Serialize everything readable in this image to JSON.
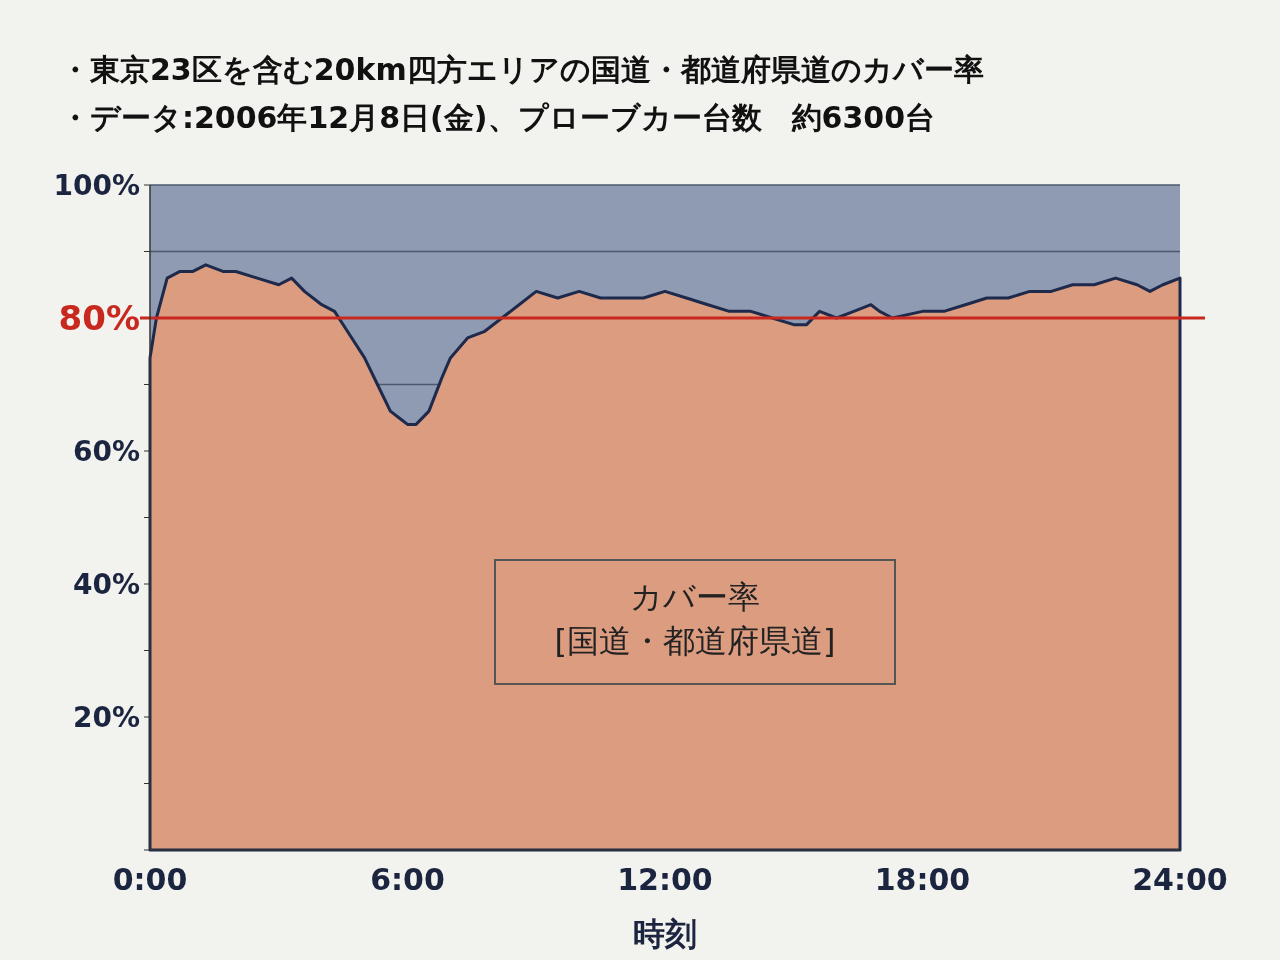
{
  "chart_data": {
    "type": "area",
    "title": "・東京23区を含む20km四方エリアの国道・都道府県道のカバー率",
    "subtitle": "・データ:2006年12月8日(金)、プローブカー台数　約6300台",
    "xlabel": "時刻",
    "x": [
      0,
      0.15,
      0.4,
      0.7,
      1.0,
      1.3,
      1.7,
      2.0,
      2.5,
      3.0,
      3.3,
      3.6,
      4.0,
      4.3,
      4.6,
      5.0,
      5.3,
      5.6,
      5.8,
      6.0,
      6.2,
      6.5,
      6.8,
      7.0,
      7.4,
      7.8,
      8.2,
      8.6,
      9.0,
      9.5,
      10,
      10.5,
      11,
      11.5,
      12,
      12.5,
      13,
      13.5,
      14,
      14.5,
      15,
      15.3,
      15.6,
      16,
      16.4,
      16.8,
      17,
      17.3,
      18,
      18.5,
      19,
      19.5,
      20,
      20.5,
      21,
      21.5,
      22,
      22.5,
      23,
      23.3,
      23.6,
      24
    ],
    "series": [
      {
        "name": "カバー率\n[国道・都道府県道]",
        "color": "#dc9c80",
        "values": [
          74,
          80,
          86,
          87,
          87,
          88,
          87,
          87,
          86,
          85,
          86,
          84,
          82,
          81,
          78,
          74,
          70,
          66,
          65,
          64,
          64,
          66,
          71,
          74,
          77,
          78,
          80,
          82,
          84,
          83,
          84,
          83,
          83,
          83,
          84,
          83,
          82,
          81,
          81,
          80,
          79,
          79,
          81,
          80,
          81,
          82,
          81,
          80,
          81,
          81,
          82,
          83,
          83,
          84,
          84,
          85,
          85,
          86,
          85,
          84,
          85,
          86
        ]
      }
    ],
    "xlim": [
      0,
      24
    ],
    "xticks": [
      {
        "value": 0,
        "label": "0:00"
      },
      {
        "value": 6,
        "label": "6:00"
      },
      {
        "value": 12,
        "label": "12:00"
      },
      {
        "value": 18,
        "label": "18:00"
      },
      {
        "value": 24,
        "label": "24:00"
      }
    ],
    "ylim": [
      0,
      100
    ],
    "yticks": [
      {
        "value": 0,
        "label": null
      },
      {
        "value": 10,
        "label": null
      },
      {
        "value": 20,
        "label": "20%"
      },
      {
        "value": 30,
        "label": null
      },
      {
        "value": 40,
        "label": "40%"
      },
      {
        "value": 50,
        "label": null
      },
      {
        "value": 60,
        "label": "60%"
      },
      {
        "value": 70,
        "label": null
      },
      {
        "value": 80,
        "label": null
      },
      {
        "value": 90,
        "label": null
      },
      {
        "value": 100,
        "label": "100%"
      }
    ],
    "grid": "y",
    "bands": [
      {
        "axis": "y",
        "from": 64,
        "to": 100,
        "color": "#8f9bb2"
      }
    ],
    "ref_lines": [
      {
        "axis": "y",
        "value": 80,
        "label": "80%",
        "color": "#c8281e"
      }
    ]
  }
}
